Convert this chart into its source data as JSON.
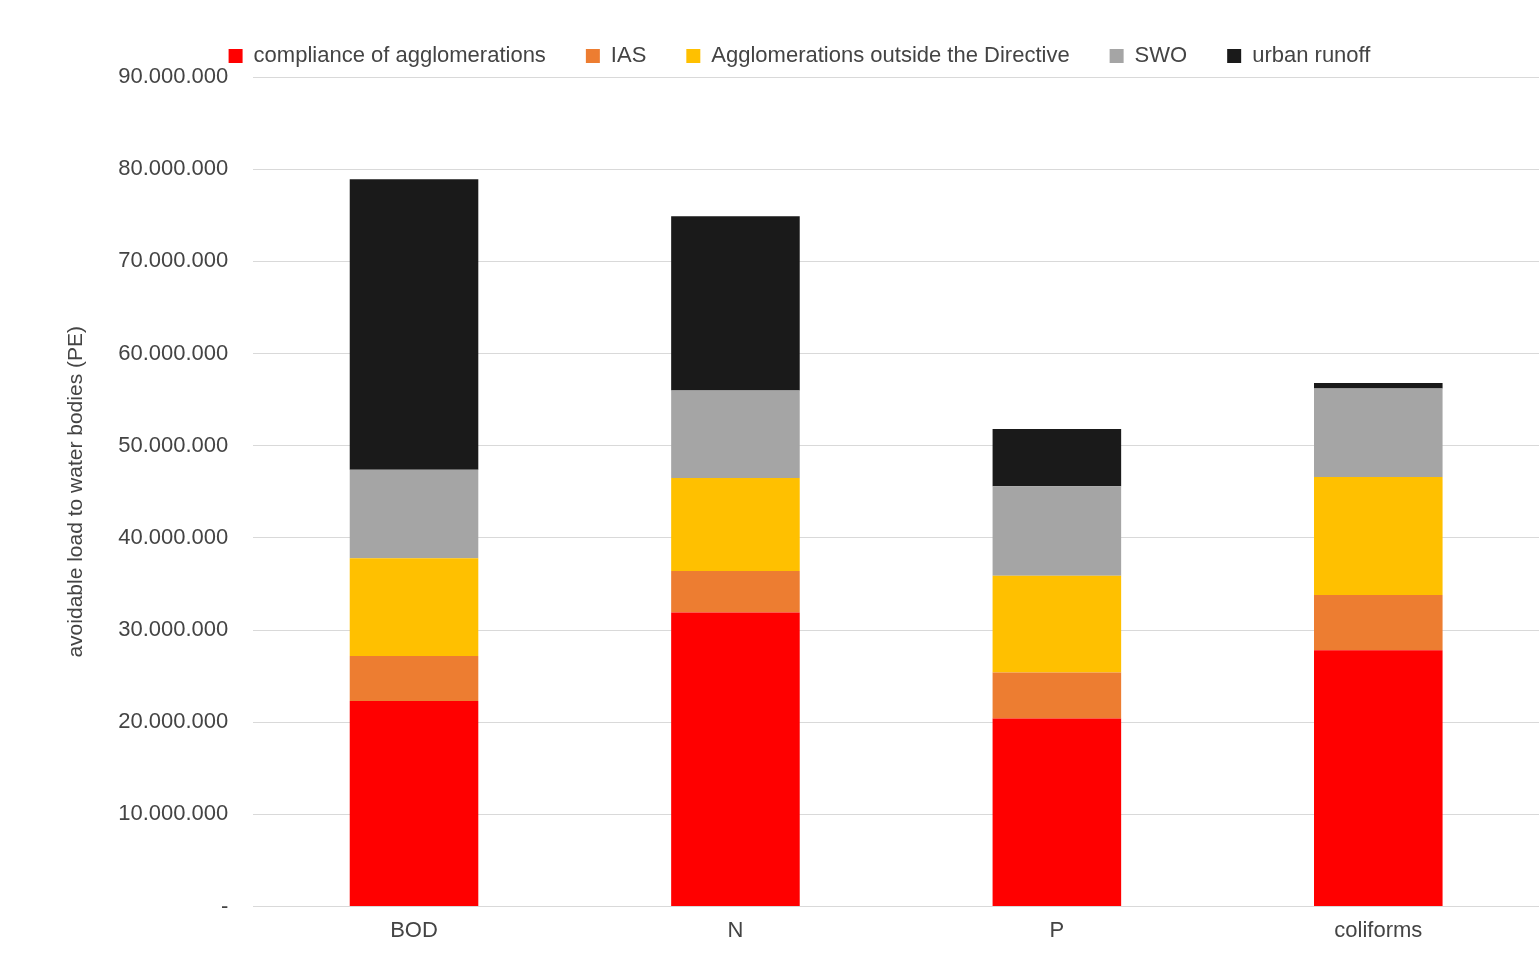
{
  "chart_data": {
    "type": "bar",
    "stacked": true,
    "ylabel": "avoidable load to water bodies (PE)",
    "categories": [
      "BOD",
      "N",
      "P",
      "coliforms"
    ],
    "series": [
      {
        "name": "compliance of agglomerations",
        "color": "#ff0000",
        "values": [
          22300000,
          31900000,
          20400000,
          27800000
        ]
      },
      {
        "name": "IAS",
        "color": "#ed7d31",
        "values": [
          4900000,
          4500000,
          5000000,
          6000000
        ]
      },
      {
        "name": "Agglomerations outside the Directive",
        "color": "#ffc000",
        "values": [
          10600000,
          10100000,
          10500000,
          12800000
        ]
      },
      {
        "name": "SWO",
        "color": "#a5a5a5",
        "values": [
          9600000,
          9500000,
          9700000,
          9600000
        ]
      },
      {
        "name": "urban runoff",
        "color": "#1a1a1a",
        "values": [
          31500000,
          18900000,
          6200000,
          600000
        ]
      }
    ],
    "ylim": [
      0,
      90000000
    ],
    "yticks": [
      {
        "value": 0,
        "label": "-"
      },
      {
        "value": 10000000,
        "label": "10.000.000"
      },
      {
        "value": 20000000,
        "label": "20.000.000"
      },
      {
        "value": 30000000,
        "label": "30.000.000"
      },
      {
        "value": 40000000,
        "label": "40.000.000"
      },
      {
        "value": 50000000,
        "label": "50.000.000"
      },
      {
        "value": 60000000,
        "label": "60.000.000"
      },
      {
        "value": 70000000,
        "label": "70.000.000"
      },
      {
        "value": 80000000,
        "label": "80.000.000"
      },
      {
        "value": 90000000,
        "label": "90.000.000"
      }
    ],
    "grid": "y",
    "legend": "top"
  }
}
